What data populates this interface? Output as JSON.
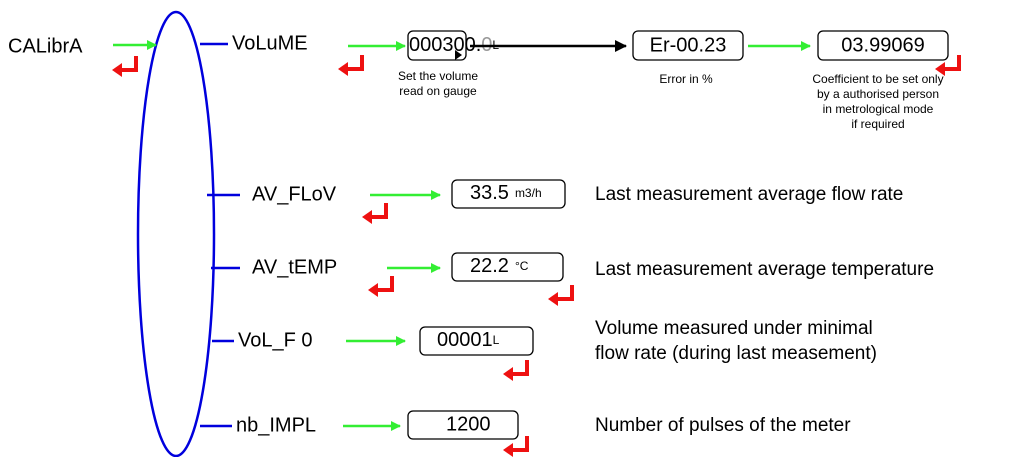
{
  "root": {
    "label": "CALibrA"
  },
  "volume": {
    "label": "VoLuME",
    "display": {
      "digits": "000300.",
      "fraction": "0",
      "unit": "L"
    },
    "caption": [
      "Set the volume",
      "read on gauge"
    ],
    "error": {
      "display": "Er-00.23",
      "caption": "Error in %"
    },
    "coefficient": {
      "display": "03.99069",
      "caption": [
        "Coefficient to be set only",
        "by a authorised person",
        "in metrological mode",
        "if required"
      ]
    }
  },
  "rows": [
    {
      "label": "AV_FLoV",
      "value": "33.5",
      "unit": "m3/h",
      "description": [
        "Last measurement average flow rate"
      ]
    },
    {
      "label": "AV_tEMP",
      "value": "22.2",
      "unit": "°C",
      "description": [
        "Last measurement average temperature"
      ]
    },
    {
      "label": "VoL_F 0",
      "value": "00001",
      "unit": "L",
      "description": [
        "Volume measured under minimal",
        "flow rate (during last measement)"
      ]
    },
    {
      "label": "nb_IMPL",
      "value": "1200",
      "description": [
        "Number of pulses of the meter"
      ]
    }
  ]
}
